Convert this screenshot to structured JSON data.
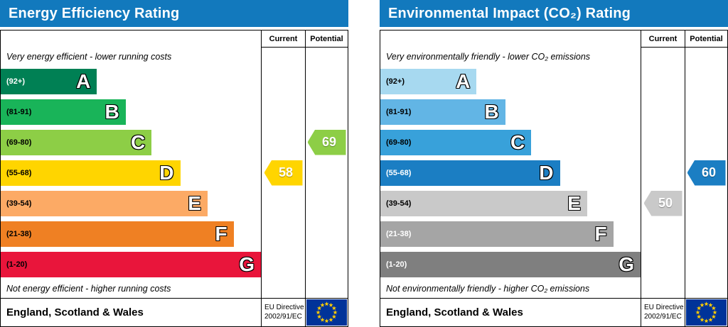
{
  "eu_flag": {
    "background": "#003399",
    "star_color": "#FFCC00"
  },
  "panels": [
    {
      "title": "Energy Efficiency Rating",
      "header_color": "#1279BD",
      "columns": {
        "current": "Current",
        "potential": "Potential"
      },
      "top_label": "Very energy efficient - lower running costs",
      "bottom_label": "Not energy efficient - higher running costs",
      "footer": {
        "region": "England, Scotland & Wales",
        "directive_line1": "EU Directive",
        "directive_line2": "2002/91/EC"
      },
      "bands": [
        {
          "letter": "A",
          "range": "(92+)",
          "color": "#008054",
          "width_pct": 37,
          "range_color": "#FFFFFF"
        },
        {
          "letter": "B",
          "range": "(81-91)",
          "color": "#19B459",
          "width_pct": 48
        },
        {
          "letter": "C",
          "range": "(69-80)",
          "color": "#8DCE46",
          "width_pct": 58
        },
        {
          "letter": "D",
          "range": "(55-68)",
          "color": "#FFD500",
          "width_pct": 69
        },
        {
          "letter": "E",
          "range": "(39-54)",
          "color": "#FCAA65",
          "width_pct": 79.5
        },
        {
          "letter": "F",
          "range": "(21-38)",
          "color": "#EF8023",
          "width_pct": 89.5
        },
        {
          "letter": "G",
          "range": "(1-20)",
          "color": "#E9153B",
          "width_pct": 100
        }
      ],
      "current": {
        "value": "58",
        "color": "#FFD500",
        "band_index": 3
      },
      "potential": {
        "value": "69",
        "color": "#8DCE46",
        "band_index": 2
      }
    },
    {
      "title": "Environmental Impact (CO₂) Rating",
      "header_color": "#1279BD",
      "columns": {
        "current": "Current",
        "potential": "Potential"
      },
      "top_label": "Very environmentally friendly - lower CO₂ emissions",
      "bottom_label": "Not environmentally friendly - higher CO₂ emissions",
      "footer": {
        "region": "England, Scotland & Wales",
        "directive_line1": "EU Directive",
        "directive_line2": "2002/91/EC"
      },
      "bands": [
        {
          "letter": "A",
          "range": "(92+)",
          "color": "#A7D9F0",
          "width_pct": 37
        },
        {
          "letter": "B",
          "range": "(81-91)",
          "color": "#62B5E5",
          "width_pct": 48
        },
        {
          "letter": "C",
          "range": "(69-80)",
          "color": "#38A1DA",
          "width_pct": 58
        },
        {
          "letter": "D",
          "range": "(55-68)",
          "color": "#1B7EC3",
          "width_pct": 69,
          "range_color": "#FFFFFF"
        },
        {
          "letter": "E",
          "range": "(39-54)",
          "color": "#C9C9C9",
          "width_pct": 79.5
        },
        {
          "letter": "F",
          "range": "(21-38)",
          "color": "#A5A5A5",
          "width_pct": 89.5,
          "range_color": "#FFFFFF"
        },
        {
          "letter": "G",
          "range": "(1-20)",
          "color": "#7F7F7F",
          "width_pct": 100,
          "range_color": "#FFFFFF"
        }
      ],
      "current": {
        "value": "50",
        "color": "#C9C9C9",
        "band_index": 4
      },
      "potential": {
        "value": "60",
        "color": "#1B7EC3",
        "band_index": 3
      }
    }
  ],
  "chart_data": [
    {
      "type": "bar",
      "title": "Energy Efficiency Rating",
      "categories": [
        "A (92+)",
        "B (81-91)",
        "C (69-80)",
        "D (55-68)",
        "E (39-54)",
        "F (21-38)",
        "G (1-20)"
      ],
      "values": [
        37,
        48,
        58,
        69,
        79.5,
        89.5,
        100
      ],
      "current_rating": 58,
      "current_band": "D",
      "potential_rating": 69,
      "potential_band": "C",
      "top_annotation": "Very energy efficient - lower running costs",
      "bottom_annotation": "Not energy efficient - higher running costs",
      "footer": "England, Scotland & Wales",
      "directive": "EU Directive 2002/91/EC"
    },
    {
      "type": "bar",
      "title": "Environmental Impact (CO₂) Rating",
      "categories": [
        "A (92+)",
        "B (81-91)",
        "C (69-80)",
        "D (55-68)",
        "E (39-54)",
        "F (21-38)",
        "G (1-20)"
      ],
      "values": [
        37,
        48,
        58,
        69,
        79.5,
        89.5,
        100
      ],
      "current_rating": 50,
      "current_band": "E",
      "potential_rating": 60,
      "potential_band": "D",
      "top_annotation": "Very environmentally friendly - lower CO₂ emissions",
      "bottom_annotation": "Not environmentally friendly - higher CO₂ emissions",
      "footer": "England, Scotland & Wales",
      "directive": "EU Directive 2002/91/EC"
    }
  ]
}
